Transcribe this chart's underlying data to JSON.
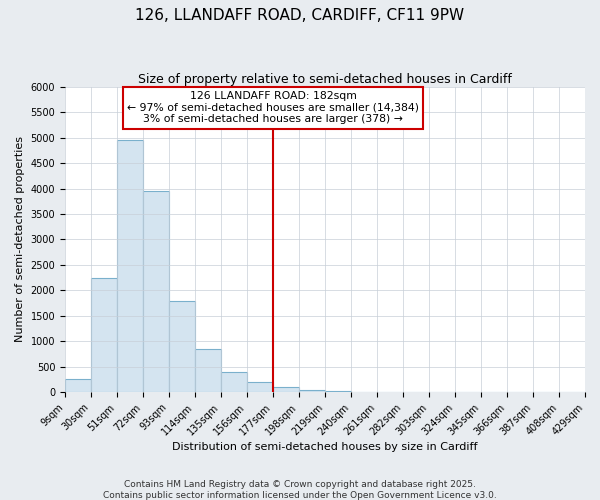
{
  "title": "126, LLANDAFF ROAD, CARDIFF, CF11 9PW",
  "subtitle": "Size of property relative to semi-detached houses in Cardiff",
  "xlabel": "Distribution of semi-detached houses by size in Cardiff",
  "ylabel": "Number of semi-detached properties",
  "bin_edges": [
    9,
    30,
    51,
    72,
    93,
    114,
    135,
    156,
    177,
    198,
    219,
    240,
    261,
    282,
    303,
    324,
    345,
    366,
    387,
    408,
    429
  ],
  "bar_heights": [
    270,
    2250,
    4950,
    3950,
    1800,
    850,
    400,
    200,
    100,
    50,
    20,
    10,
    0,
    0,
    0,
    0,
    0,
    0,
    0,
    0
  ],
  "bar_color": "#d4e4f0",
  "bar_edgecolor": "#7ab0cc",
  "vline_x": 177,
  "vline_color": "#cc0000",
  "annotation_box_text": "126 LLANDAFF ROAD: 182sqm\n← 97% of semi-detached houses are smaller (14,384)\n3% of semi-detached houses are larger (378) →",
  "background_color": "#e8ecf0",
  "plot_background_color": "#ffffff",
  "ylim": [
    0,
    6000
  ],
  "yticks": [
    0,
    500,
    1000,
    1500,
    2000,
    2500,
    3000,
    3500,
    4000,
    4500,
    5000,
    5500,
    6000
  ],
  "tick_labels": [
    "9sqm",
    "30sqm",
    "51sqm",
    "72sqm",
    "93sqm",
    "114sqm",
    "135sqm",
    "156sqm",
    "177sqm",
    "198sqm",
    "219sqm",
    "240sqm",
    "261sqm",
    "282sqm",
    "303sqm",
    "324sqm",
    "345sqm",
    "366sqm",
    "387sqm",
    "408sqm",
    "429sqm"
  ],
  "footer_line1": "Contains HM Land Registry data © Crown copyright and database right 2025.",
  "footer_line2": "Contains public sector information licensed under the Open Government Licence v3.0.",
  "title_fontsize": 11,
  "subtitle_fontsize": 9,
  "axis_label_fontsize": 8,
  "tick_fontsize": 7,
  "footer_fontsize": 6.5
}
